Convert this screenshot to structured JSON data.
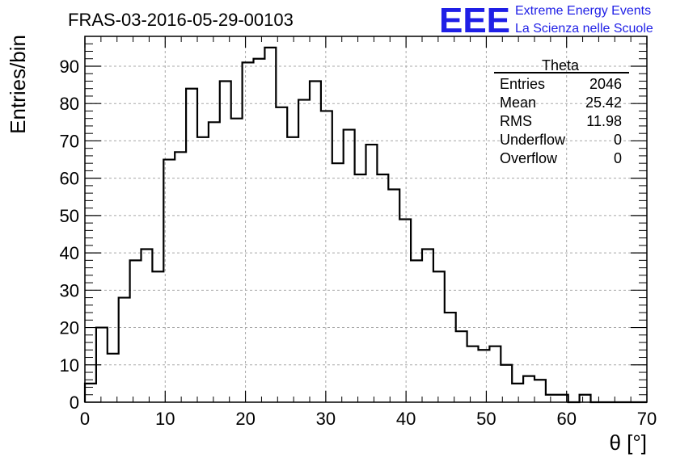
{
  "header": {
    "run_title": "FRAS-03-2016-05-29-00103",
    "logo_text": "EEE",
    "org_line1": "Extreme Energy Events",
    "org_line2": "La Scienza nelle Scuole"
  },
  "stats_box": {
    "title": "Theta",
    "rows": [
      {
        "label": "Entries",
        "value": "2046"
      },
      {
        "label": "Mean",
        "value": "25.42"
      },
      {
        "label": "RMS",
        "value": "11.98"
      },
      {
        "label": "Underflow",
        "value": "0"
      },
      {
        "label": "Overflow",
        "value": "0"
      }
    ]
  },
  "colors": {
    "logo": "#1f1fe6",
    "line": "#000000",
    "grid": "#a8a8a8"
  },
  "chart_data": {
    "type": "histogram",
    "title": "FRAS-03-2016-05-29-00103",
    "xlabel": "θ [°]",
    "ylabel": "Entries/bin",
    "xlim": [
      0,
      70
    ],
    "ylim": [
      0,
      98
    ],
    "bin_width": 1.4,
    "bin_edges_start": 0,
    "x_ticks": [
      0,
      10,
      20,
      30,
      40,
      50,
      60,
      70
    ],
    "y_ticks": [
      0,
      10,
      20,
      30,
      40,
      50,
      60,
      70,
      80,
      90
    ],
    "grid": true,
    "values": [
      5,
      20,
      13,
      28,
      38,
      41,
      35,
      65,
      67,
      84,
      71,
      75,
      86,
      76,
      91,
      92,
      95,
      79,
      71,
      81,
      86,
      78,
      64,
      73,
      61,
      69,
      61,
      57,
      49,
      38,
      41,
      35,
      24,
      19,
      15,
      14,
      15,
      10,
      5,
      7,
      6,
      2,
      2,
      0,
      2,
      0,
      0,
      0,
      0,
      0
    ]
  }
}
